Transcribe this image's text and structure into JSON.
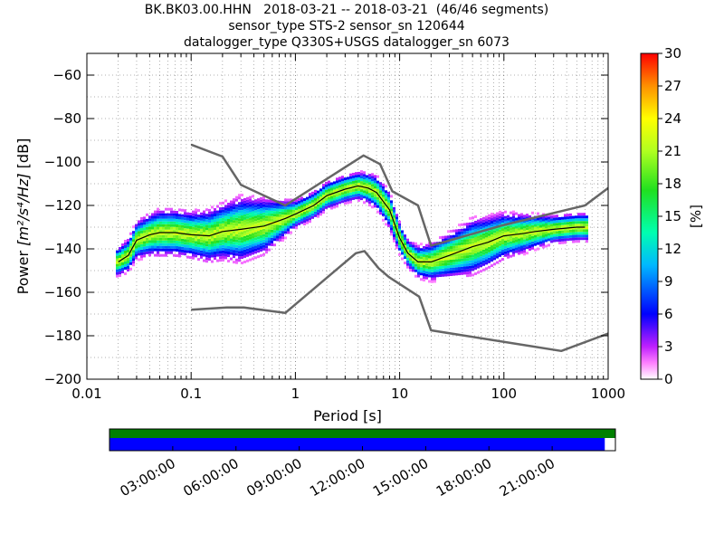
{
  "chart_data": {
    "type": "heatmap",
    "title": [
      "BK.BK03.00.HHN   2018-03-21 -- 2018-03-21  (46/46 segments)",
      "sensor_type STS-2 sensor_sn 120644",
      "datalogger_type Q330S+USGS datalogger_sn 6073"
    ],
    "xlabel": "Period [s]",
    "ylabel_main": "Power ",
    "ylabel_unit": "[m²/s⁴/Hz]",
    "ylabel_db": " [dB]",
    "xscale": "log",
    "xlim": [
      0.01,
      1000
    ],
    "ylim": [
      -200,
      -50
    ],
    "x_tick_values": [
      0.01,
      0.1,
      1,
      10,
      100,
      1000
    ],
    "x_tick_labels": [
      "0.01",
      "0.1",
      "1",
      "10",
      "100",
      "1000"
    ],
    "y_tick_values": [
      -200,
      -180,
      -160,
      -140,
      -120,
      -100,
      -80,
      -60
    ],
    "y_tick_labels": [
      "−200",
      "−180",
      "−160",
      "−140",
      "−120",
      "−100",
      "−80",
      "−60"
    ],
    "grid": true,
    "colorbar": {
      "label": "[%]",
      "range": [
        0,
        30
      ],
      "tick_values": [
        0,
        3,
        6,
        9,
        12,
        15,
        18,
        21,
        24,
        27,
        30
      ],
      "tick_labels": [
        "0",
        "3",
        "6",
        "9",
        "12",
        "15",
        "18",
        "21",
        "24",
        "27",
        "30"
      ],
      "colormap": "pqlx"
    },
    "nhnm": {
      "x": [
        0.1,
        0.22,
        0.32,
        0.8,
        3.8,
        4.6,
        6.3,
        7.9,
        15.4,
        20,
        354.8,
        1000
      ],
      "y": [
        -168,
        -167,
        -167,
        -169.5,
        -142,
        -141,
        -149,
        -153,
        -162,
        -177.5,
        -187,
        -179
      ]
    },
    "nlnm": {
      "x": [
        0.1,
        0.2,
        0.3,
        0.8,
        4.5,
        6.5,
        8.5,
        15,
        20,
        100,
        600,
        1000
      ],
      "y": [
        -92,
        -97.5,
        -110.5,
        -120,
        -97,
        -101,
        -113.5,
        -120,
        -138.5,
        -129,
        -120,
        -112
      ]
    },
    "mode_curve": {
      "x": [
        0.02,
        0.025,
        0.03,
        0.04,
        0.05,
        0.07,
        0.1,
        0.15,
        0.2,
        0.3,
        0.5,
        0.8,
        1,
        1.5,
        2,
        3,
        4,
        5,
        6,
        8,
        10,
        12,
        15,
        20,
        30,
        50,
        70,
        100,
        150,
        200,
        300,
        500,
        600
      ],
      "y": [
        -146,
        -143,
        -136,
        -133.5,
        -132.5,
        -132.5,
        -133.5,
        -134,
        -132,
        -131,
        -129.5,
        -126,
        -124,
        -120,
        -115.5,
        -112.5,
        -111,
        -112,
        -114,
        -122,
        -135,
        -142,
        -146,
        -146,
        -143,
        -139,
        -137,
        -134,
        -133,
        -132,
        -131,
        -130,
        -130
      ]
    },
    "spread_profile": {
      "x": [
        0.02,
        0.03,
        0.05,
        0.1,
        0.2,
        0.3,
        0.5,
        1,
        2,
        4,
        8,
        12,
        20,
        50,
        100,
        300,
        600
      ],
      "sigma": [
        3,
        4,
        5,
        5,
        6,
        7,
        6,
        3,
        3,
        3,
        4,
        3,
        4,
        6,
        5,
        3,
        3
      ]
    }
  },
  "timeline": {
    "tick_labels": [
      "03:00:00",
      "06:00:00",
      "09:00:00",
      "12:00:00",
      "15:00:00",
      "18:00:00",
      "21:00:00"
    ],
    "tick_hours": [
      3,
      6,
      9,
      12,
      15,
      18,
      21
    ],
    "green_bar_fraction": 1.0,
    "blue_bar_fraction": 0.979,
    "colors": {
      "green": "#008000",
      "blue": "#0000ff"
    }
  }
}
